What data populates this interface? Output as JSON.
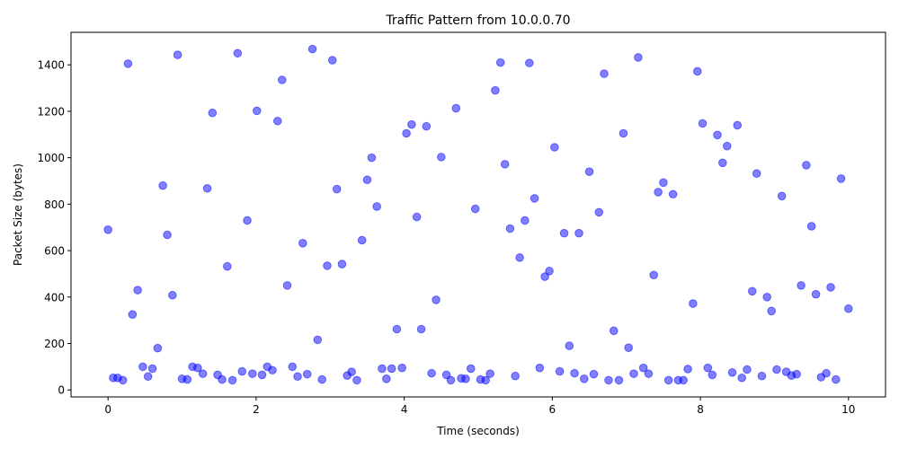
{
  "chart_data": {
    "type": "scatter",
    "title": "Traffic Pattern from 10.0.0.70",
    "xlabel": "Time (seconds)",
    "ylabel": "Packet Size (bytes)",
    "xlim": [
      -0.5,
      10.5
    ],
    "ylim": [
      -30,
      1540
    ],
    "xticks": [
      0,
      2,
      4,
      6,
      8,
      10
    ],
    "yticks": [
      0,
      200,
      400,
      600,
      800,
      1000,
      1200,
      1400
    ],
    "grid": false,
    "marker_color": "#0000ff",
    "marker_alpha": 0.5,
    "series": [
      {
        "points": [
          [
            0.0,
            690
          ],
          [
            0.07,
            52
          ],
          [
            0.13,
            52
          ],
          [
            0.2,
            42
          ],
          [
            0.27,
            1405
          ],
          [
            0.33,
            325
          ],
          [
            0.4,
            430
          ],
          [
            0.47,
            100
          ],
          [
            0.54,
            58
          ],
          [
            0.6,
            92
          ],
          [
            0.67,
            180
          ],
          [
            0.74,
            880
          ],
          [
            0.8,
            668
          ],
          [
            0.87,
            408
          ],
          [
            0.94,
            1443
          ],
          [
            1.0,
            48
          ],
          [
            1.07,
            45
          ],
          [
            1.14,
            100
          ],
          [
            1.21,
            95
          ],
          [
            1.28,
            70
          ],
          [
            1.34,
            868
          ],
          [
            1.41,
            1193
          ],
          [
            1.48,
            65
          ],
          [
            1.54,
            45
          ],
          [
            1.61,
            532
          ],
          [
            1.68,
            42
          ],
          [
            1.75,
            1450
          ],
          [
            1.81,
            80
          ],
          [
            1.88,
            730
          ],
          [
            1.95,
            70
          ],
          [
            2.01,
            1202
          ],
          [
            2.08,
            65
          ],
          [
            2.15,
            100
          ],
          [
            2.22,
            85
          ],
          [
            2.29,
            1158
          ],
          [
            2.35,
            1335
          ],
          [
            2.42,
            450
          ],
          [
            2.49,
            100
          ],
          [
            2.56,
            58
          ],
          [
            2.63,
            632
          ],
          [
            2.69,
            68
          ],
          [
            2.76,
            1468
          ],
          [
            2.83,
            216
          ],
          [
            2.89,
            45
          ],
          [
            2.96,
            535
          ],
          [
            3.03,
            1420
          ],
          [
            3.09,
            865
          ],
          [
            3.16,
            542
          ],
          [
            3.23,
            62
          ],
          [
            3.29,
            78
          ],
          [
            3.36,
            42
          ],
          [
            3.43,
            645
          ],
          [
            3.5,
            905
          ],
          [
            3.56,
            1000
          ],
          [
            3.63,
            790
          ],
          [
            3.7,
            92
          ],
          [
            3.76,
            48
          ],
          [
            3.83,
            92
          ],
          [
            3.9,
            262
          ],
          [
            3.97,
            95
          ],
          [
            4.03,
            1105
          ],
          [
            4.1,
            1143
          ],
          [
            4.17,
            745
          ],
          [
            4.23,
            262
          ],
          [
            4.3,
            1135
          ],
          [
            4.37,
            72
          ],
          [
            4.43,
            388
          ],
          [
            4.5,
            1003
          ],
          [
            4.57,
            65
          ],
          [
            4.63,
            42
          ],
          [
            4.7,
            1213
          ],
          [
            4.77,
            50
          ],
          [
            4.83,
            48
          ],
          [
            4.9,
            92
          ],
          [
            4.96,
            780
          ],
          [
            5.03,
            45
          ],
          [
            5.1,
            42
          ],
          [
            5.16,
            70
          ],
          [
            5.23,
            1290
          ],
          [
            5.3,
            1410
          ],
          [
            5.36,
            972
          ],
          [
            5.43,
            695
          ],
          [
            5.5,
            60
          ],
          [
            5.56,
            570
          ],
          [
            5.63,
            730
          ],
          [
            5.69,
            1408
          ],
          [
            5.76,
            825
          ],
          [
            5.83,
            95
          ],
          [
            5.9,
            488
          ],
          [
            5.96,
            512
          ],
          [
            6.03,
            1045
          ],
          [
            6.1,
            80
          ],
          [
            6.16,
            675
          ],
          [
            6.23,
            190
          ],
          [
            6.3,
            72
          ],
          [
            6.36,
            675
          ],
          [
            6.43,
            48
          ],
          [
            6.5,
            940
          ],
          [
            6.56,
            68
          ],
          [
            6.63,
            765
          ],
          [
            6.7,
            1362
          ],
          [
            6.76,
            42
          ],
          [
            6.83,
            255
          ],
          [
            6.9,
            42
          ],
          [
            6.96,
            1105
          ],
          [
            7.03,
            182
          ],
          [
            7.1,
            70
          ],
          [
            7.16,
            1432
          ],
          [
            7.23,
            95
          ],
          [
            7.3,
            70
          ],
          [
            7.37,
            495
          ],
          [
            7.43,
            852
          ],
          [
            7.5,
            893
          ],
          [
            7.57,
            42
          ],
          [
            7.63,
            843
          ],
          [
            7.7,
            42
          ],
          [
            7.77,
            42
          ],
          [
            7.83,
            90
          ],
          [
            7.9,
            372
          ],
          [
            7.96,
            1372
          ],
          [
            8.03,
            1148
          ],
          [
            8.1,
            95
          ],
          [
            8.16,
            65
          ],
          [
            8.23,
            1098
          ],
          [
            8.3,
            978
          ],
          [
            8.36,
            1050
          ],
          [
            8.43,
            75
          ],
          [
            8.5,
            1140
          ],
          [
            8.56,
            52
          ],
          [
            8.63,
            88
          ],
          [
            8.7,
            425
          ],
          [
            8.76,
            932
          ],
          [
            8.83,
            60
          ],
          [
            8.9,
            400
          ],
          [
            8.96,
            340
          ],
          [
            9.03,
            88
          ],
          [
            9.1,
            835
          ],
          [
            9.16,
            78
          ],
          [
            9.23,
            62
          ],
          [
            9.3,
            68
          ],
          [
            9.36,
            450
          ],
          [
            9.43,
            968
          ],
          [
            9.5,
            705
          ],
          [
            9.56,
            412
          ],
          [
            9.63,
            55
          ],
          [
            9.7,
            72
          ],
          [
            9.76,
            442
          ],
          [
            9.83,
            45
          ],
          [
            9.9,
            910
          ],
          [
            10.0,
            350
          ]
        ]
      }
    ]
  }
}
